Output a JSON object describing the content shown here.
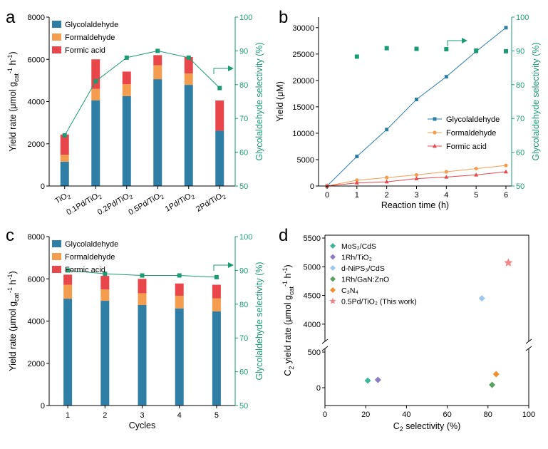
{
  "colors": {
    "glycolaldehyde": "#2e7ea6",
    "formaldehyde": "#f59d4f",
    "formic_acid": "#e8464a",
    "selectivity": "#1a9b73",
    "axis": "#000000",
    "mos2": "#3fb59a",
    "rh_tio2": "#8c7cc4",
    "nips": "#9cc7ef",
    "gan": "#5aa35f",
    "c3n4": "#f28f2c",
    "this_work": "#f08a8a"
  },
  "panels": {
    "a": "a",
    "b": "b",
    "c": "c",
    "d": "d"
  },
  "labels": {
    "yield_rate": "Yield rate (μmol g",
    "yield_rate_sub": "cat",
    "yield_rate_sup": "-1",
    "yield_rate_h": " h",
    "yield_rate_end": ")",
    "gly_selectivity": "Glycolaldehyde selectivity (%)",
    "yield_um": "Yield (μM)",
    "reaction_time": "Reaction time (h)",
    "cycles": "Cycles",
    "c2_rate_main": "C",
    "c2_rate_sub": "2",
    "c2_rate_rest": " yield rate (μmol g",
    "c2_rate_unit_sub": "cat",
    "c2_rate_sup": "-1",
    "c2_rate_h": " h",
    "c2_rate_end": ")",
    "c2_sel_main": "C",
    "c2_sel_sub": "2",
    "c2_sel_rest": " selectivity (%)"
  },
  "chart_data": [
    {
      "panel": "a",
      "type": "bar",
      "stacked": true,
      "categories": [
        "TiO2",
        "0.1Pd/TiO2",
        "0.2Pd/TiO2",
        "0.5Pd/TiO2",
        "1Pd/TiO2",
        "2Pd/TiO2"
      ],
      "series": [
        {
          "name": "Glycolaldehyde",
          "values": [
            1150,
            4060,
            4260,
            5060,
            4790,
            2620
          ]
        },
        {
          "name": "Formaldehyde",
          "values": [
            330,
            540,
            560,
            660,
            540,
            0
          ]
        },
        {
          "name": "Formic acid",
          "values": [
            960,
            1400,
            600,
            480,
            780,
            1430
          ]
        }
      ],
      "selectivity": {
        "name": "Glycolaldehyde selectivity",
        "values": [
          65,
          81,
          88,
          90,
          88,
          79
        ]
      },
      "ylabel": "Yield rate (μmol gcat-1 h-1)",
      "ylim": [
        0,
        8000
      ],
      "yticks": [
        "0",
        "2000",
        "4000",
        "6000",
        "8000"
      ],
      "y2label": "Glycolaldehyde selectivity (%)",
      "y2lim": [
        50,
        100
      ],
      "y2ticks": [
        "50",
        "60",
        "70",
        "80",
        "90",
        "100"
      ],
      "legend": "top-left"
    },
    {
      "panel": "b",
      "type": "line",
      "x": [
        0,
        1,
        2,
        3,
        4,
        5,
        6
      ],
      "series": [
        {
          "name": "Glycolaldehyde",
          "values": [
            0,
            5600,
            10700,
            16400,
            20700,
            25500,
            30000
          ]
        },
        {
          "name": "Formaldehyde",
          "values": [
            0,
            1100,
            1600,
            2100,
            2700,
            3300,
            3900
          ]
        },
        {
          "name": "Formic acid",
          "values": [
            0,
            600,
            800,
            1400,
            1700,
            2100,
            2700
          ]
        }
      ],
      "selectivity": {
        "name": "Glycolaldehyde selectivity",
        "x": [
          1,
          2,
          3,
          4,
          5,
          6
        ],
        "values": [
          88.3,
          90.8,
          90.6,
          90.5,
          90.1,
          89.9
        ]
      },
      "xlabel": "Reaction time (h)",
      "xticks": [
        "0",
        "1",
        "2",
        "3",
        "4",
        "5",
        "6"
      ],
      "ylabel": "Yield (μM)",
      "ylim": [
        0,
        32000
      ],
      "yticks": [
        "0",
        "5000",
        "10000",
        "15000",
        "20000",
        "25000",
        "30000"
      ],
      "y2label": "Glycolaldehyde selectivity (%)",
      "y2lim": [
        50,
        100
      ],
      "y2ticks": [
        "50",
        "60",
        "70",
        "80",
        "90",
        "100"
      ],
      "legend": "right"
    },
    {
      "panel": "c",
      "type": "bar",
      "stacked": true,
      "categories": [
        "1",
        "2",
        "3",
        "4",
        "5"
      ],
      "series": [
        {
          "name": "Glycolaldehyde",
          "values": [
            5060,
            4960,
            4760,
            4600,
            4460
          ]
        },
        {
          "name": "Formaldehyde",
          "values": [
            660,
            540,
            560,
            600,
            620
          ]
        },
        {
          "name": "Formic acid",
          "values": [
            480,
            640,
            680,
            580,
            640
          ]
        }
      ],
      "selectivity": {
        "name": "Glycolaldehyde selectivity",
        "values": [
          90,
          89,
          88.5,
          88.5,
          88
        ]
      },
      "xlabel": "Cycles",
      "ylabel": "Yield rate (μmol gcat-1 h-1)",
      "ylim": [
        0,
        8000
      ],
      "yticks": [
        "0",
        "2000",
        "4000",
        "6000",
        "8000"
      ],
      "y2label": "Glycolaldehyde selectivity (%)",
      "y2lim": [
        50,
        100
      ],
      "y2ticks": [
        "50",
        "60",
        "70",
        "80",
        "90",
        "100"
      ],
      "legend": "top-left"
    },
    {
      "panel": "d",
      "type": "scatter",
      "broken_y_axis": true,
      "points": [
        {
          "name": "MoS2/CdS",
          "label": "MoS₂/CdS",
          "x": 21,
          "y": 100,
          "marker": "diamond",
          "color_key": "mos2"
        },
        {
          "name": "1Rh/TiO2",
          "label": "1Rh/TiO₂",
          "x": 26,
          "y": 110,
          "marker": "diamond",
          "color_key": "rh_tio2"
        },
        {
          "name": "d-NiPS3/CdS",
          "label": "d-NiPS₃/CdS",
          "x": 77,
          "y": 4450,
          "marker": "diamond",
          "color_key": "nips"
        },
        {
          "name": "1Rh/GaN:ZnO",
          "label": "1Rh/GaN:ZnO",
          "x": 82,
          "y": 40,
          "marker": "diamond",
          "color_key": "gan"
        },
        {
          "name": "C3N4",
          "label": "C₃N₄",
          "x": 84,
          "y": 190,
          "marker": "diamond",
          "color_key": "c3n4"
        },
        {
          "name": "0.5Pd/TiO2 (This work)",
          "label": "0.5Pd/TiO₂ (This work)",
          "x": 90,
          "y": 5070,
          "marker": "star",
          "color_key": "this_work"
        }
      ],
      "xlabel": "C2 selectivity (%)",
      "xlim": [
        0,
        100
      ],
      "xticks": [
        "0",
        "20",
        "40",
        "60",
        "80",
        "100"
      ],
      "ylabel": "C2 yield rate (μmol gcat-1 h-1)",
      "ylim_lower": [
        -250,
        550
      ],
      "ylim_upper": [
        3700,
        5550
      ],
      "yticks_lower": [
        "0",
        "500"
      ],
      "yticks_upper": [
        "4000",
        "4500",
        "5000",
        "5500"
      ],
      "legend": "top-left"
    }
  ]
}
